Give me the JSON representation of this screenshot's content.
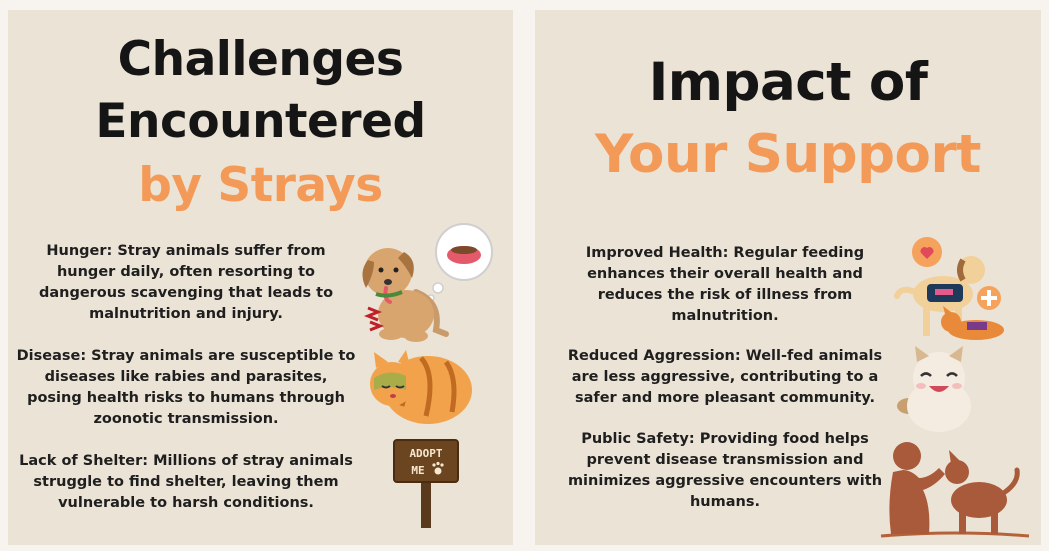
{
  "left": {
    "title_line1": "Challenges",
    "title_line2": "Encountered",
    "title_line3": "by Strays",
    "items": [
      {
        "text": "Hunger: Stray animals suffer from hunger daily, often resorting to dangerous scavenging that leads to malnutrition and injury.",
        "icon": "hungry-dog-icon"
      },
      {
        "text": "Disease: Stray animals are susceptible to diseases like rabies and parasites, posing health risks to humans through zoonotic transmission.",
        "icon": "sick-cat-icon"
      },
      {
        "text": "Lack of Shelter:  Millions of stray animals struggle to find shelter, leaving them vulnerable to harsh conditions.",
        "icon": "adopt-me-sign-icon"
      }
    ],
    "sign_text_line1": "ADOPT",
    "sign_text_line2": "ME"
  },
  "right": {
    "title_line1": "Impact of",
    "title_line2": "Your Support",
    "items": [
      {
        "text": "Improved Health: Regular feeding enhances their overall health and reduces the risk of illness from malnutrition.",
        "icon": "service-dogs-health-icon"
      },
      {
        "text": "Reduced Aggression: Well-fed animals are less aggressive, contributing to a safer and more pleasant community.",
        "icon": "happy-cat-icon"
      },
      {
        "text": "Public Safety: Providing food helps prevent disease transmission and minimizes aggressive encounters with humans.",
        "icon": "person-with-dog-icon"
      }
    ]
  },
  "colors": {
    "background": "#ebe3d6",
    "accent_orange": "#f39a58",
    "title_dark": "#151515"
  }
}
